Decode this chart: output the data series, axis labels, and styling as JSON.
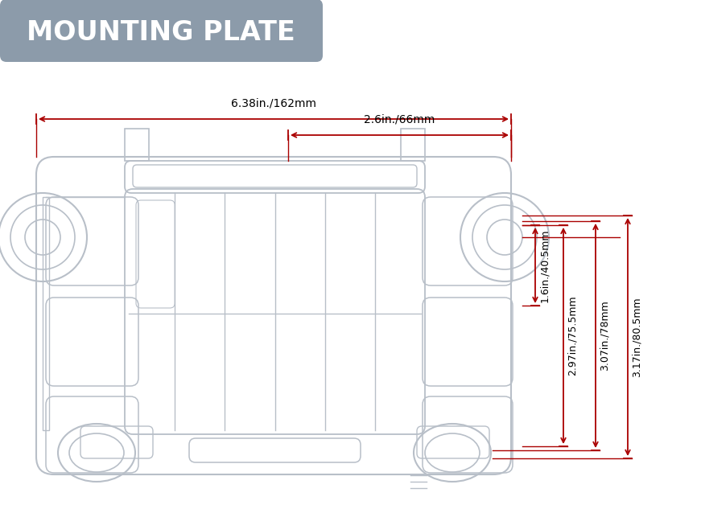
{
  "title": "MOUNTING PLATE",
  "title_bg_color": "#8c9baa",
  "title_text_color": "#ffffff",
  "drawing_color": "#b8bfc8",
  "dim_color": "#aa0000",
  "bg_color": "#ffffff",
  "dim_top_label": "6.38in./162mm",
  "dim_top2_label": "2.6in./66mm",
  "dim_right1_label": "1.6in./40.5mm",
  "dim_right2_label": "2.97in./75.5mm",
  "dim_right3_label": "3.07in./78mm",
  "dim_right4_label": "3.17in./80.5mm"
}
